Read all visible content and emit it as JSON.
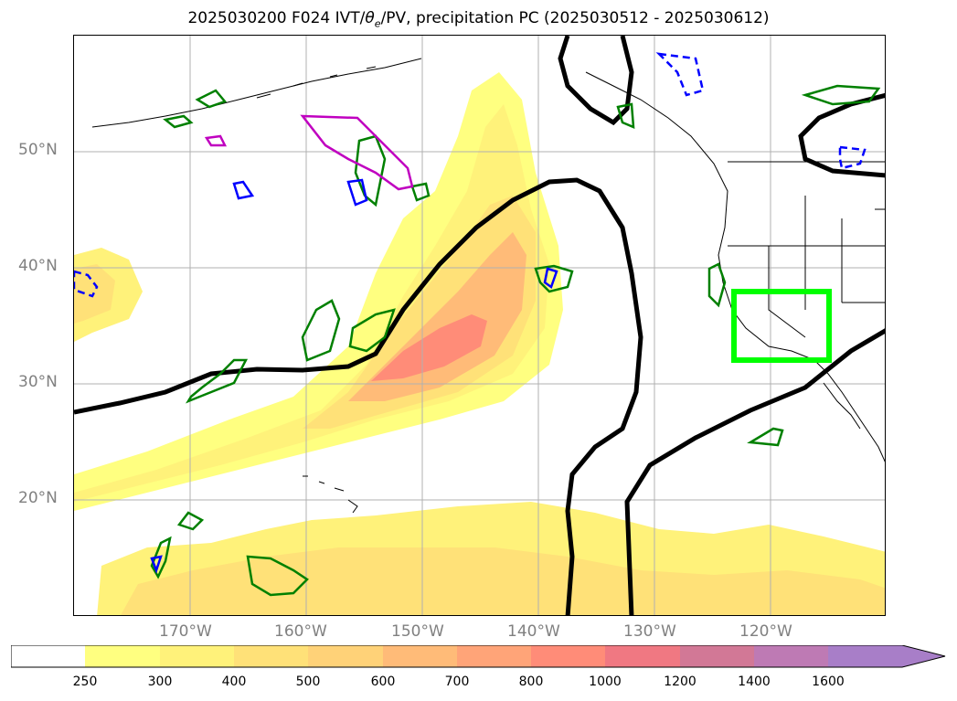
{
  "title": "2025030200 F024 IVT/θe/PV, precipitation PC (2025030512 - 2025030612)",
  "title_parts": {
    "prefix": "2025030200 F024 IVT/",
    "theta": "θ",
    "theta_sub": "e",
    "suffix": "/PV, precipitation PC (2025030512 - 2025030612)"
  },
  "axes": {
    "lat_labels": [
      "50°N",
      "40°N",
      "30°N",
      "20°N"
    ],
    "lon_labels": [
      "170°W",
      "160°W",
      "150°W",
      "140°W",
      "130°W",
      "120°W"
    ]
  },
  "colorbar": {
    "ticks": [
      "250",
      "300",
      "400",
      "500",
      "600",
      "700",
      "800",
      "1000",
      "1200",
      "1400",
      "1600"
    ],
    "colors": [
      "#ffff80",
      "#fff27a",
      "#ffe178",
      "#ffd278",
      "#ffbb78",
      "#ffa478",
      "#ff8c78",
      "#f07882",
      "#d27896",
      "#be7ab4",
      "#a87ec8"
    ],
    "extend": "max"
  },
  "map": {
    "type": "contour-map",
    "lat_range": [
      10,
      60
    ],
    "lon_range": [
      -180,
      -110
    ],
    "grid": true,
    "layers": [
      "IVT filled contours",
      "theta-e contours (black)",
      "PV contours (green, blue, magenta)",
      "precipitation target box (lime)"
    ],
    "colors": {
      "ivt_low": "#ffff80",
      "ivt_peak": "#ff8c78",
      "theta_e": "#000000",
      "pv_green": "#008000",
      "pv_blue": "#0000ff",
      "pv_magenta": "#c000c0",
      "target_box": "#00ff00"
    }
  }
}
